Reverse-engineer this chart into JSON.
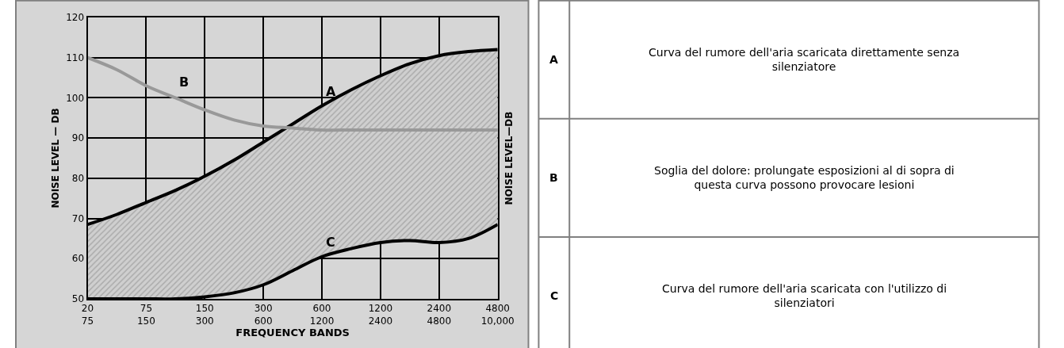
{
  "chart_data": {
    "type": "line",
    "xlabel": "FREQUENCY BANDS",
    "ylabel": "NOISE LEVEL — DB",
    "y2label": "NOISE LEVEL—DB",
    "categories": [
      "20\n75",
      null,
      "75\n150",
      null,
      "150\n300",
      null,
      "300\n600",
      null,
      "600\n1200",
      null,
      "1200\n2400",
      null,
      "2400\n4800",
      null,
      "4800\n10,000"
    ],
    "ylim": [
      50,
      120
    ],
    "yticks": [
      50,
      60,
      70,
      80,
      90,
      100,
      110,
      120
    ],
    "grid": true,
    "series": [
      {
        "name": "C",
        "color": "#000000",
        "values": [
          50,
          50,
          50,
          50,
          50.5,
          51.5,
          53.5,
          57,
          60.5,
          62.5,
          64,
          64.5,
          64,
          65,
          68.5
        ]
      },
      {
        "name": "A",
        "type": "area",
        "color": "#000000",
        "values": [
          68.5,
          71,
          74,
          77,
          80.5,
          84.5,
          89,
          93.5,
          98,
          102,
          105.5,
          108.5,
          110.5,
          111.5,
          112
        ]
      },
      {
        "name": "B",
        "color": "#999999",
        "values": [
          110,
          107,
          103,
          100,
          97,
          94.5,
          93,
          92.5,
          92,
          92,
          92,
          92,
          92,
          92,
          92
        ]
      }
    ],
    "annotations": [
      "Curva del rumore dell'aria scaricata direttamente senza silenziatore",
      "Soglia del dolore: prolungate esposizioni al di sopra di questa curva possono provocare lesioni",
      "Curva del rumore dell'aria scaricata con l'utilizzo di silenziatori"
    ]
  }
}
